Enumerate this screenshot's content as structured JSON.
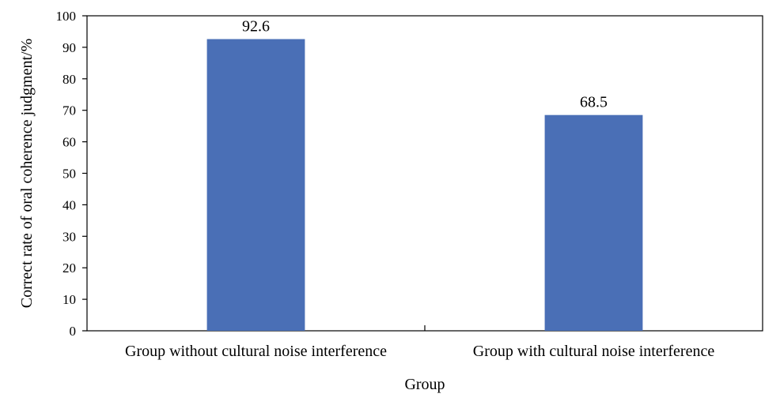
{
  "chart_data": {
    "type": "bar",
    "categories": [
      "Group without cultural noise interference",
      "Group with cultural noise interference"
    ],
    "values": [
      92.6,
      68.5
    ],
    "data_labels": [
      "92.6",
      "68.5"
    ],
    "xlabel": "Group",
    "ylabel": "Correct rate of oral coherence judgment/%",
    "ylim": [
      0,
      100
    ],
    "yticks": [
      0,
      10,
      20,
      30,
      40,
      50,
      60,
      70,
      80,
      90,
      100
    ],
    "grid": false,
    "legend": "none",
    "bar_color": "#4a6fb6",
    "axis_color": "#000000"
  }
}
